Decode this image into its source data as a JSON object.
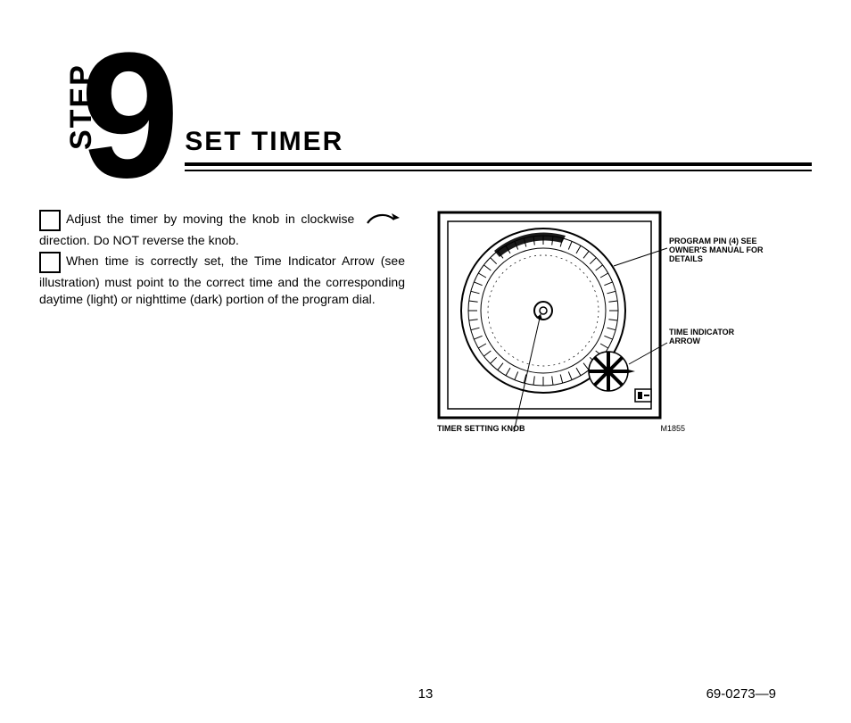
{
  "header": {
    "step_label": "STEP",
    "step_number": "9",
    "title": "SET TIMER"
  },
  "instructions": {
    "para1_a": "Adjust the timer by moving the knob in clockwise ",
    "para1_b": " direction. Do NOT reverse the knob.",
    "para2": "When time is correctly set, the Time Indicator Arrow (see illustration) must point to the correct time and the corresponding daytime (light) or nighttime (dark) portion of the program dial."
  },
  "diagram": {
    "outer_border_color": "#000000",
    "outer_border_width": 3,
    "background_color": "#ffffff",
    "dial_ring_tick_count": 48,
    "callouts": {
      "program_pin": "PROGRAM PIN (4) SEE OWNER'S MANUAL FOR DETAILS",
      "time_indicator": "TIME INDICATOR ARROW",
      "timer_knob": "TIMER SETTING KNOB",
      "code": "M1855"
    }
  },
  "footer": {
    "page_number": "13",
    "doc_number": "69-0273—9"
  },
  "colors": {
    "text": "#000000",
    "bg": "#ffffff",
    "hatch": "#000000"
  }
}
